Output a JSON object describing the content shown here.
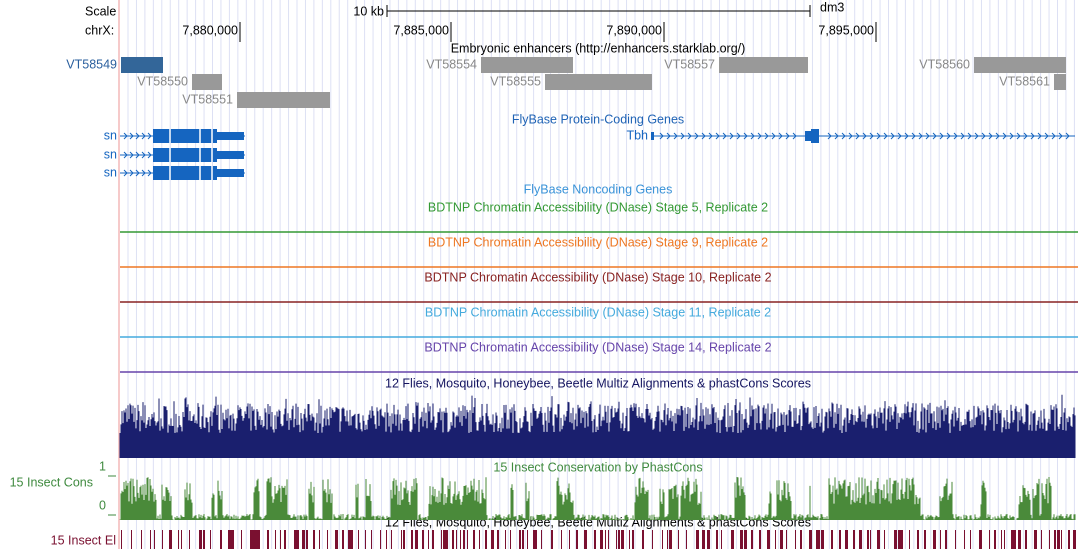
{
  "ruler": {
    "scale_label": "Scale",
    "scale_value": "10 kb",
    "assembly": "dm3",
    "chrom_label": "chrX:",
    "positions": [
      "7,880,000",
      "7,885,000",
      "7,890,000",
      "7,895,000"
    ]
  },
  "enhancers": {
    "title": "Embryonic enhancers (http://enhancers.starklab.org/)",
    "items": [
      "VT58549",
      "VT58550",
      "VT58551",
      "VT58554",
      "VT58555",
      "VT58557",
      "VT58560",
      "VT58561"
    ]
  },
  "genes": {
    "title": "FlyBase Protein-Coding Genes",
    "items": [
      "sn",
      "sn",
      "sn",
      "Tbh"
    ]
  },
  "noncoding": {
    "title": "FlyBase Noncoding Genes"
  },
  "dnase": {
    "titles": [
      "BDTNP Chromatin Accessibility (DNase) Stage 5, Replicate 2",
      "BDTNP Chromatin Accessibility (DNase) Stage 9, Replicate 2",
      "BDTNP Chromatin Accessibility (DNase) Stage 10, Replicate 2",
      "BDTNP Chromatin Accessibility (DNase) Stage 11, Replicate 2",
      "BDTNP Chromatin Accessibility (DNase) Stage 14, Replicate 2"
    ]
  },
  "multiz": {
    "title": "12 Flies, Mosquito, Honeybee, Beetle Multiz Alignments & phastCons Scores"
  },
  "conservation": {
    "title": "15 Insect Conservation by PhastCons",
    "side_label": "15 Insect Cons",
    "axis_top": "1",
    "axis_bottom": "0"
  },
  "elements": {
    "title": "12 Flies, Mosquito, Honeybee, Beetle Multiz Alignments & phastCons Scores",
    "side_label": "15 Insect El"
  }
}
